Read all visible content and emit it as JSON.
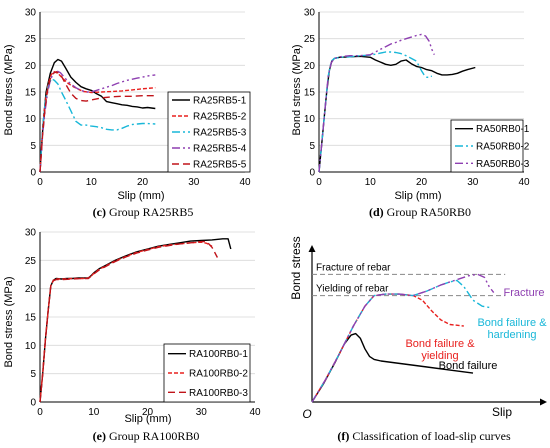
{
  "chart_data": [
    {
      "type": "line",
      "caption_letter": "(c)",
      "caption_text": " Group RA25RB5",
      "xlabel": "Slip (mm)",
      "ylabel": "Bond stress (MPa)",
      "xlim": [
        0,
        40
      ],
      "ylim": [
        0,
        30
      ],
      "xticks": [
        0,
        10,
        20,
        30,
        40
      ],
      "yticks": [
        0,
        5,
        10,
        15,
        20,
        25,
        30
      ],
      "legend_position": "right",
      "series": [
        {
          "name": "RA25RB5-1",
          "color": "#000000",
          "dash": "solid",
          "x": [
            0,
            0.6,
            1.2,
            2,
            2.8,
            3.5,
            4.2,
            5,
            6,
            7,
            8,
            9,
            10,
            11,
            12,
            13,
            14,
            15,
            16,
            17,
            18,
            19,
            20,
            21,
            22.5
          ],
          "y": [
            0,
            9,
            15,
            18.5,
            20.5,
            21.1,
            20.8,
            19.5,
            17.8,
            16.8,
            16,
            15.6,
            15.3,
            14.7,
            14.2,
            13.2,
            13,
            12.8,
            12.6,
            12.5,
            12.3,
            12.2,
            12,
            12.1,
            11.9
          ]
        },
        {
          "name": "RA25RB5-2",
          "color": "#e8201e",
          "dash": "4,2",
          "x": [
            0,
            0.5,
            1,
            1.6,
            2.2,
            2.8,
            3.5,
            4.5,
            5.5,
            6.5,
            7.5,
            8.5,
            10,
            12,
            14,
            16,
            18,
            20,
            22.5
          ],
          "y": [
            0,
            8,
            13,
            16.5,
            18.3,
            18.8,
            18.5,
            17.5,
            16.6,
            16,
            15.5,
            15.1,
            14.9,
            15,
            15.1,
            15.2,
            15.4,
            15.6,
            15.8
          ]
        },
        {
          "name": "RA25RB5-3",
          "color": "#18b7d8",
          "dash": "8,3,2,3",
          "x": [
            0,
            0.5,
            1,
            1.6,
            2.2,
            2.8,
            3.5,
            4.2,
            5,
            6,
            7,
            8,
            9,
            10,
            11,
            12,
            13,
            14,
            15,
            16,
            17,
            18,
            19,
            20,
            21,
            22.5
          ],
          "y": [
            0,
            8,
            13,
            16,
            17.5,
            17.2,
            16.5,
            15,
            13.5,
            11.5,
            9.5,
            8.8,
            8.8,
            8.6,
            8.5,
            8.3,
            8,
            7.9,
            7.9,
            8.2,
            8.6,
            8.9,
            9,
            9.1,
            9.1,
            9
          ]
        },
        {
          "name": "RA25RB5-4",
          "color": "#8e3fb1",
          "dash": "8,3,2,3,2,3",
          "x": [
            0,
            0.5,
            1,
            1.5,
            2,
            2.6,
            3.2,
            4,
            5,
            6,
            7,
            8,
            9,
            10,
            11,
            12,
            13,
            14,
            15,
            16,
            17,
            18,
            19,
            20,
            21,
            22.5
          ],
          "y": [
            0,
            7,
            11.5,
            15,
            17.2,
            18.5,
            19,
            18.6,
            17.5,
            16.5,
            15.8,
            15.3,
            15,
            15,
            15.3,
            15.6,
            15.9,
            16.2,
            16.6,
            16.9,
            17.2,
            17.4,
            17.6,
            17.8,
            18,
            18.2
          ]
        },
        {
          "name": "RA25RB5-5",
          "color": "#c0141a",
          "dash": "7,4",
          "x": [
            0,
            0.5,
            1,
            1.5,
            2,
            2.6,
            3.2,
            4,
            5,
            6,
            7,
            8,
            9,
            10,
            12,
            14,
            16,
            18,
            20,
            22.5
          ],
          "y": [
            0,
            7,
            12,
            15.5,
            17.5,
            18.5,
            18.8,
            18.3,
            16.5,
            14.8,
            13.8,
            13.4,
            13.3,
            13.5,
            13.9,
            14.1,
            14.2,
            14.2,
            14.3,
            14.3
          ]
        }
      ]
    },
    {
      "type": "line",
      "caption_letter": "(d)",
      "caption_text": " Group RA50RB0",
      "xlabel": "Slip (mm)",
      "ylabel": "Bond stress (MPa)",
      "xlim": [
        0,
        40
      ],
      "ylim": [
        0,
        30
      ],
      "xticks": [
        0,
        10,
        20,
        30,
        40
      ],
      "yticks": [
        0,
        5,
        10,
        15,
        20,
        25,
        30
      ],
      "legend_position": "bottom-right",
      "series": [
        {
          "name": "RA50RB0-1",
          "color": "#000000",
          "dash": "solid",
          "x": [
            0,
            0.5,
            1,
            1.5,
            2,
            2.5,
            3,
            4,
            6,
            8,
            10,
            11,
            12,
            13,
            14,
            15,
            16,
            17,
            18,
            19,
            20,
            21,
            22,
            23,
            24,
            25,
            26,
            27,
            28,
            29,
            30.5
          ],
          "y": [
            0,
            5,
            10,
            15,
            19,
            20.8,
            21.3,
            21.5,
            21.6,
            21.7,
            21.5,
            21,
            20.6,
            20.2,
            20,
            20.2,
            20.8,
            21,
            20.3,
            19.8,
            19.6,
            19.2,
            19,
            18.5,
            18.2,
            18.2,
            18.3,
            18.5,
            18.9,
            19.2,
            19.6
          ]
        },
        {
          "name": "RA50RB0-2",
          "color": "#18b7d8",
          "dash": "8,3,2,3",
          "x": [
            0,
            0.6,
            1.2,
            1.8,
            2.4,
            3,
            4,
            6,
            8,
            10,
            12,
            13,
            14,
            15,
            16,
            17,
            18,
            19,
            20,
            20.5,
            21,
            21.5,
            22
          ],
          "y": [
            0,
            6,
            12,
            18,
            20.8,
            21.3,
            21.5,
            21.6,
            21.8,
            21.9,
            22.3,
            22.5,
            22.5,
            22.4,
            22.2,
            21.8,
            21.3,
            20.8,
            19,
            18.2,
            17.8,
            17.7,
            18
          ]
        },
        {
          "name": "RA50RB0-3",
          "color": "#8e3fb1",
          "dash": "8,3,2,3,2,3",
          "x": [
            0,
            0.6,
            1.2,
            1.8,
            2.4,
            3,
            4,
            6,
            8,
            10,
            11,
            12,
            13,
            14,
            15,
            16,
            17,
            18,
            19,
            20,
            20.8,
            21.5,
            22,
            22.5
          ],
          "y": [
            0,
            6,
            12,
            18,
            20.5,
            21.3,
            21.6,
            21.8,
            21.8,
            22,
            22.5,
            23,
            23.5,
            24,
            24.3,
            24.7,
            25,
            25.3,
            25.6,
            25.8,
            25.5,
            24.5,
            23,
            22
          ]
        }
      ]
    },
    {
      "type": "line",
      "caption_letter": "(e)",
      "caption_text": " Group RA100RB0",
      "xlabel": "Slip (mm)",
      "ylabel": "Bond stress (MPa)",
      "xlim": [
        0,
        40
      ],
      "ylim": [
        0,
        30
      ],
      "xticks": [
        0,
        10,
        20,
        30,
        40
      ],
      "yticks": [
        0,
        5,
        10,
        15,
        20,
        25,
        30
      ],
      "legend_position": "bottom-right",
      "series": [
        {
          "name": "RA100RB0-1",
          "color": "#000000",
          "dash": "solid",
          "x": [
            0,
            0.5,
            1,
            1.5,
            2,
            2.5,
            3,
            4,
            5,
            6,
            7,
            8,
            9,
            9.5,
            10,
            11,
            12,
            14,
            16,
            18,
            20,
            22,
            24,
            26,
            28,
            30,
            32,
            34,
            35,
            35.5
          ],
          "y": [
            0,
            5,
            11,
            16,
            20.5,
            21.5,
            21.8,
            21.7,
            21.8,
            21.8,
            21.9,
            21.9,
            21.9,
            22.3,
            22.8,
            23.5,
            24,
            25,
            25.8,
            26.5,
            27,
            27.5,
            27.8,
            28.1,
            28.4,
            28.5,
            28.6,
            28.8,
            28.8,
            27
          ]
        },
        {
          "name": "RA100RB0-2",
          "color": "#e8201e",
          "dash": "4,2",
          "x": [
            0,
            0.5,
            1,
            1.5,
            2,
            2.5,
            3,
            4,
            6,
            8,
            9,
            9.5,
            10,
            11,
            12,
            14,
            16,
            18,
            20,
            22,
            24,
            26,
            28,
            30,
            31,
            32
          ],
          "y": [
            0,
            5,
            11,
            16,
            20.5,
            21.5,
            21.7,
            21.7,
            21.8,
            21.8,
            21.9,
            22.2,
            22.7,
            23.4,
            23.9,
            24.9,
            25.7,
            26.4,
            26.9,
            27.4,
            27.7,
            27.9,
            28.1,
            28.2,
            28,
            27.5
          ]
        },
        {
          "name": "RA100RB0-3",
          "color": "#c0141a",
          "dash": "7,4",
          "x": [
            0,
            0.5,
            1,
            1.5,
            2,
            2.5,
            3,
            4,
            6,
            8,
            9,
            9.5,
            10,
            11,
            12,
            14,
            16,
            18,
            20,
            22,
            24,
            26,
            28,
            30,
            31,
            32,
            33
          ],
          "y": [
            0,
            5,
            11,
            16,
            20.5,
            21.4,
            21.6,
            21.6,
            21.7,
            21.8,
            21.8,
            22.2,
            22.6,
            23.3,
            23.8,
            24.8,
            25.6,
            26.3,
            26.8,
            27.3,
            27.6,
            27.9,
            28.1,
            28.3,
            28.3,
            27.3,
            25.5
          ]
        }
      ]
    },
    {
      "type": "line",
      "caption_letter": "(f)",
      "caption_text": " Classification of load-slip curves",
      "xlabel": "Slip",
      "ylabel": "Bond stress",
      "origin_label": "O",
      "reference_lines": [
        {
          "label": "Fracture of rebar",
          "y": 0.84
        },
        {
          "label": "Yielding of rebar",
          "y": 0.7
        }
      ],
      "annotations": [
        {
          "text": "Fracture",
          "color": "#8e3fb1"
        },
        {
          "text": "Bond failure &",
          "color": "#18b7d8"
        },
        {
          "text": "hardening",
          "color": "#18b7d8"
        },
        {
          "text": "Bond failure &",
          "color": "#e8201e"
        },
        {
          "text": "yielding",
          "color": "#e8201e"
        },
        {
          "text": "Bond failure",
          "color": "#000000"
        }
      ],
      "series": [
        {
          "id": "bond-failure",
          "color": "#000000",
          "dash": "solid",
          "x": [
            0,
            0.05,
            0.1,
            0.14,
            0.17,
            0.19,
            0.21,
            0.23,
            0.25,
            0.27,
            0.3,
            0.35,
            0.4,
            0.5,
            0.6,
            0.7
          ],
          "y": [
            0,
            0.12,
            0.26,
            0.38,
            0.44,
            0.45,
            0.42,
            0.35,
            0.3,
            0.28,
            0.27,
            0.26,
            0.25,
            0.23,
            0.21,
            0.19
          ]
        },
        {
          "id": "bond-failure-yielding",
          "color": "#e8201e",
          "dash": "4,2",
          "x": [
            0,
            0.06,
            0.12,
            0.18,
            0.23,
            0.27,
            0.32,
            0.38,
            0.44,
            0.48,
            0.52,
            0.56,
            0.6,
            0.66
          ],
          "y": [
            0,
            0.15,
            0.32,
            0.5,
            0.63,
            0.7,
            0.71,
            0.71,
            0.7,
            0.67,
            0.6,
            0.54,
            0.51,
            0.5
          ]
        },
        {
          "id": "bond-failure-hardening",
          "color": "#18b7d8",
          "dash": "8,3,2,3",
          "x": [
            0,
            0.06,
            0.12,
            0.18,
            0.23,
            0.27,
            0.32,
            0.38,
            0.44,
            0.5,
            0.56,
            0.6,
            0.63,
            0.66,
            0.7,
            0.74,
            0.78
          ],
          "y": [
            0,
            0.15,
            0.32,
            0.5,
            0.63,
            0.7,
            0.71,
            0.71,
            0.7,
            0.73,
            0.77,
            0.79,
            0.8,
            0.76,
            0.67,
            0.63,
            0.62
          ]
        },
        {
          "id": "fracture",
          "color": "#8e3fb1",
          "dash": "8,3,2,3,2,3",
          "x": [
            0,
            0.06,
            0.12,
            0.18,
            0.23,
            0.27,
            0.32,
            0.38,
            0.44,
            0.5,
            0.56,
            0.62,
            0.68,
            0.72,
            0.75,
            0.77,
            0.79
          ],
          "y": [
            0,
            0.15,
            0.32,
            0.5,
            0.63,
            0.7,
            0.71,
            0.71,
            0.7,
            0.73,
            0.77,
            0.8,
            0.83,
            0.84,
            0.82,
            0.76,
            0.72
          ]
        }
      ]
    }
  ]
}
